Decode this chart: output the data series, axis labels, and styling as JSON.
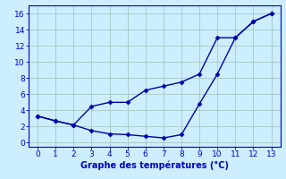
{
  "line1_x": [
    0,
    1,
    2,
    3,
    4,
    5,
    6,
    7,
    8,
    9,
    10,
    11,
    12,
    13
  ],
  "line1_y": [
    3.3,
    2.7,
    2.2,
    4.5,
    5.0,
    5.0,
    6.5,
    7.0,
    7.5,
    8.5,
    13.0,
    13.0,
    15.0,
    16.0
  ],
  "line2_x": [
    0,
    1,
    2,
    3,
    4,
    5,
    6,
    7,
    8,
    9,
    10,
    11,
    12,
    13
  ],
  "line2_y": [
    3.3,
    2.7,
    2.2,
    1.5,
    1.1,
    1.0,
    0.8,
    0.6,
    1.0,
    4.8,
    8.5,
    13.0,
    15.0,
    16.0
  ],
  "line_color": "#0000aa",
  "marker": "D",
  "marker_size": 2.5,
  "xlabel": "Graphe des températures (°C)",
  "xlabel_color": "#0000cc",
  "xlabel_fontsize": 7,
  "xlim": [
    -0.5,
    13.5
  ],
  "ylim": [
    -0.5,
    17.0
  ],
  "xticks": [
    0,
    1,
    2,
    3,
    4,
    5,
    6,
    7,
    8,
    9,
    10,
    11,
    12,
    13
  ],
  "yticks": [
    0,
    2,
    4,
    6,
    8,
    10,
    12,
    14,
    16
  ],
  "bg_color": "#cceeff",
  "grid_color": "#aacccc",
  "axis_color": "#0000cc",
  "tick_label_color": "#0000cc",
  "tick_label_fontsize": 6.5,
  "line_width": 1.0,
  "spine_color": "#0000cc"
}
